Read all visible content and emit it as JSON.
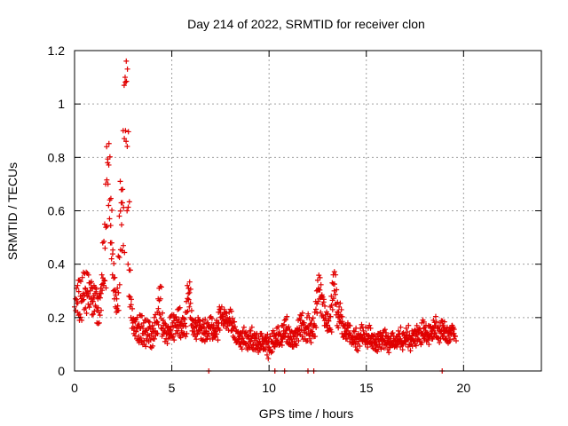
{
  "chart_data": {
    "type": "scatter",
    "title": "Day 214 of 2022, SRMTID for receiver clon",
    "xlabel": "GPS time / hours",
    "ylabel": "SRMTID / TECUs",
    "xlim": [
      0,
      24
    ],
    "ylim": [
      0,
      1.2
    ],
    "x_ticks": [
      0,
      5,
      10,
      15,
      20
    ],
    "y_ticks": [
      0,
      0.2,
      0.4,
      0.6,
      0.8,
      1,
      1.2
    ],
    "x_tick_labels": [
      "0",
      "5",
      "10",
      "15",
      "20"
    ],
    "y_tick_labels": [
      "0",
      "0.2",
      "0.4",
      "0.6",
      "0.8",
      "1",
      "1.2"
    ],
    "grid": true,
    "marker": "+",
    "series_color": "#e00000",
    "series": [
      {
        "name": "SRMTID",
        "x_start": 0.0,
        "x_step": 0.05,
        "y": [
          0.24,
          0.27,
          0.31,
          0.22,
          0.34,
          0.19,
          0.28,
          0.26,
          0.35,
          0.29,
          0.23,
          0.31,
          0.37,
          0.28,
          0.25,
          0.33,
          0.3,
          0.27,
          0.21,
          0.26,
          0.32,
          0.29,
          0.24,
          0.18,
          0.27,
          0.22,
          0.29,
          0.31,
          0.36,
          0.48,
          0.32,
          0.55,
          0.7,
          0.84,
          0.78,
          0.62,
          0.57,
          0.48,
          0.42,
          0.36,
          0.3,
          0.27,
          0.24,
          0.22,
          0.31,
          0.43,
          0.58,
          0.71,
          0.63,
          0.45,
          0.9,
          1.07,
          1.1,
          0.86,
          0.6,
          0.4,
          0.28,
          0.24,
          0.2,
          0.16,
          0.18,
          0.14,
          0.19,
          0.15,
          0.12,
          0.17,
          0.13,
          0.21,
          0.16,
          0.11,
          0.14,
          0.18,
          0.1,
          0.15,
          0.12,
          0.19,
          0.16,
          0.13,
          0.09,
          0.14,
          0.17,
          0.12,
          0.2,
          0.15,
          0.18,
          0.22,
          0.27,
          0.31,
          0.21,
          0.16,
          0.13,
          0.19,
          0.15,
          0.11,
          0.17,
          0.14,
          0.12,
          0.16,
          0.2,
          0.15,
          0.13,
          0.18,
          0.21,
          0.17,
          0.14,
          0.19,
          0.23,
          0.16,
          0.13,
          0.18,
          0.15,
          0.2,
          0.17,
          0.14,
          0.22,
          0.26,
          0.32,
          0.29,
          0.24,
          0.2,
          0.17,
          0.15,
          0.19,
          0.16,
          0.13,
          0.18,
          0.14,
          0.2,
          0.17,
          0.15,
          0.12,
          0.16,
          0.19,
          0.14,
          0.11,
          0.15,
          0.18,
          0.13,
          0.17,
          0.2,
          0.16,
          0.14,
          0.12,
          0.17,
          0.15,
          0.13,
          0.19,
          0.16,
          0.22,
          0.24,
          0.2,
          0.18,
          0.21,
          0.17,
          0.23,
          0.19,
          0.16,
          0.2,
          0.18,
          0.22,
          0.19,
          0.15,
          0.17,
          0.13,
          0.16,
          0.12,
          0.15,
          0.11,
          0.14,
          0.1,
          0.13,
          0.09,
          0.12,
          0.15,
          0.11,
          0.14,
          0.1,
          0.13,
          0.08,
          0.12,
          0.15,
          0.11,
          0.09,
          0.13,
          0.1,
          0.14,
          0.08,
          0.12,
          0.1,
          0.07,
          0.11,
          0.14,
          0.09,
          0.12,
          0.08,
          0.11,
          0.13,
          0.1,
          0.06,
          0.09,
          0.12,
          0.08,
          0.11,
          0.14,
          0.1,
          0.13,
          0.09,
          0.12,
          0.16,
          0.11,
          0.14,
          0.1,
          0.13,
          0.17,
          0.12,
          0.15,
          0.19,
          0.14,
          0.11,
          0.16,
          0.13,
          0.1,
          0.14,
          0.12,
          0.09,
          0.13,
          0.11,
          0.15,
          0.12,
          0.16,
          0.19,
          0.15,
          0.21,
          0.17,
          0.13,
          0.18,
          0.15,
          0.12,
          0.16,
          0.2,
          0.14,
          0.17,
          0.12,
          0.15,
          0.19,
          0.14,
          0.17,
          0.22,
          0.26,
          0.3,
          0.34,
          0.31,
          0.27,
          0.22,
          0.28,
          0.25,
          0.2,
          0.17,
          0.21,
          0.18,
          0.15,
          0.19,
          0.16,
          0.24,
          0.28,
          0.33,
          0.36,
          0.3,
          0.25,
          0.21,
          0.17,
          0.2,
          0.24,
          0.21,
          0.18,
          0.14,
          0.17,
          0.13,
          0.16,
          0.12,
          0.15,
          0.18,
          0.14,
          0.11,
          0.13,
          0.1,
          0.12,
          0.15,
          0.11,
          0.09,
          0.13,
          0.1,
          0.14,
          0.12,
          0.16,
          0.13,
          0.11,
          0.15,
          0.12,
          0.1,
          0.14,
          0.11,
          0.16,
          0.13,
          0.1,
          0.12,
          0.09,
          0.13,
          0.11,
          0.08,
          0.12,
          0.1,
          0.14,
          0.11,
          0.09,
          0.13,
          0.1,
          0.12,
          0.15,
          0.11,
          0.13,
          0.1,
          0.08,
          0.12,
          0.09,
          0.11,
          0.14,
          0.1,
          0.12,
          0.09,
          0.11,
          0.13,
          0.1,
          0.15,
          0.12,
          0.09,
          0.11,
          0.14,
          0.1,
          0.13,
          0.11,
          0.16,
          0.12,
          0.09,
          0.13,
          0.1,
          0.12,
          0.15,
          0.11,
          0.14,
          0.1,
          0.13,
          0.17,
          0.12,
          0.15,
          0.11,
          0.14,
          0.18,
          0.13,
          0.16,
          0.12,
          0.15,
          0.11,
          0.14,
          0.17,
          0.13,
          0.16,
          0.12,
          0.15,
          0.19,
          0.14,
          0.17,
          0.13,
          0.16,
          0.12,
          0.15,
          0.18,
          0.14,
          0.17,
          0.13,
          0.16,
          0.12,
          0.15,
          0.11,
          0.14,
          0.13,
          0.16,
          0.15,
          0.17,
          0.14,
          0.12
        ]
      }
    ],
    "zero_points_x": [
      6.9,
      10.3,
      10.8,
      12.0,
      12.3,
      18.9
    ]
  }
}
